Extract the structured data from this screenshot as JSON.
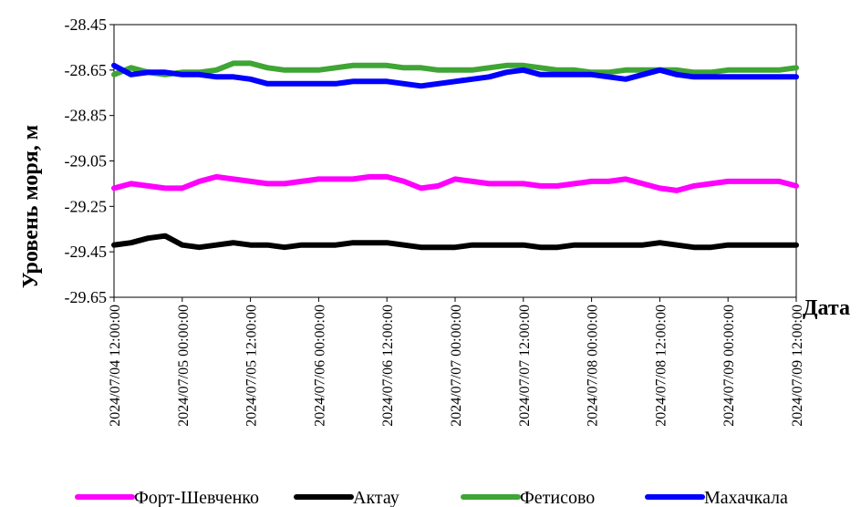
{
  "chart_data": {
    "type": "line",
    "title": "",
    "xlabel": "Дата",
    "ylabel": "Уровень моря, м",
    "ylim": [
      -29.65,
      -28.45
    ],
    "y_ticks": [
      "-28.45",
      "-28.65",
      "-28.85",
      "-29.05",
      "-29.25",
      "-29.45",
      "-29.65"
    ],
    "x_range": [
      "2024/07/04 12:00:00",
      "2024/07/09 12:00:00"
    ],
    "x_ticks": [
      "2024/07/04 12:00:00",
      "2024/07/05 00:00:00",
      "2024/07/05 12:00:00",
      "2024/07/06 00:00:00",
      "2024/07/06 12:00:00",
      "2024/07/07 00:00:00",
      "2024/07/07 12:00:00",
      "2024/07/08 00:00:00",
      "2024/07/08 12:00:00",
      "2024/07/09 00:00:00",
      "2024/07/09 12:00:00"
    ],
    "grid": false,
    "legend_position": "bottom",
    "series": [
      {
        "name": "Форт-Шевченко",
        "color": "#ff00ff",
        "x": [
          "2024/07/04 12:00:00",
          "2024/07/04 15:00:00",
          "2024/07/04 18:00:00",
          "2024/07/04 21:00:00",
          "2024/07/05 00:00:00",
          "2024/07/05 03:00:00",
          "2024/07/05 06:00:00",
          "2024/07/05 09:00:00",
          "2024/07/05 12:00:00",
          "2024/07/05 15:00:00",
          "2024/07/05 18:00:00",
          "2024/07/05 21:00:00",
          "2024/07/06 00:00:00",
          "2024/07/06 03:00:00",
          "2024/07/06 06:00:00",
          "2024/07/06 09:00:00",
          "2024/07/06 12:00:00",
          "2024/07/06 15:00:00",
          "2024/07/06 18:00:00",
          "2024/07/06 21:00:00",
          "2024/07/07 00:00:00",
          "2024/07/07 03:00:00",
          "2024/07/07 06:00:00",
          "2024/07/07 09:00:00",
          "2024/07/07 12:00:00",
          "2024/07/07 15:00:00",
          "2024/07/07 18:00:00",
          "2024/07/07 21:00:00",
          "2024/07/08 00:00:00",
          "2024/07/08 03:00:00",
          "2024/07/08 06:00:00",
          "2024/07/08 09:00:00",
          "2024/07/08 12:00:00",
          "2024/07/08 15:00:00",
          "2024/07/08 18:00:00",
          "2024/07/08 21:00:00",
          "2024/07/09 00:00:00",
          "2024/07/09 03:00:00",
          "2024/07/09 06:00:00",
          "2024/07/09 09:00:00",
          "2024/07/09 12:00:00"
        ],
        "values": [
          -29.17,
          -29.15,
          -29.16,
          -29.17,
          -29.17,
          -29.14,
          -29.12,
          -29.13,
          -29.14,
          -29.15,
          -29.15,
          -29.14,
          -29.13,
          -29.13,
          -29.13,
          -29.12,
          -29.12,
          -29.14,
          -29.17,
          -29.16,
          -29.13,
          -29.14,
          -29.15,
          -29.15,
          -29.15,
          -29.16,
          -29.16,
          -29.15,
          -29.14,
          -29.14,
          -29.13,
          -29.15,
          -29.17,
          -29.18,
          -29.16,
          -29.15,
          -29.14,
          -29.14,
          -29.14,
          -29.14,
          -29.16
        ]
      },
      {
        "name": "Актау",
        "color": "#000000",
        "x": [
          "2024/07/04 12:00:00",
          "2024/07/04 15:00:00",
          "2024/07/04 18:00:00",
          "2024/07/04 21:00:00",
          "2024/07/05 00:00:00",
          "2024/07/05 03:00:00",
          "2024/07/05 06:00:00",
          "2024/07/05 09:00:00",
          "2024/07/05 12:00:00",
          "2024/07/05 15:00:00",
          "2024/07/05 18:00:00",
          "2024/07/05 21:00:00",
          "2024/07/06 00:00:00",
          "2024/07/06 03:00:00",
          "2024/07/06 06:00:00",
          "2024/07/06 09:00:00",
          "2024/07/06 12:00:00",
          "2024/07/06 15:00:00",
          "2024/07/06 18:00:00",
          "2024/07/06 21:00:00",
          "2024/07/07 00:00:00",
          "2024/07/07 03:00:00",
          "2024/07/07 06:00:00",
          "2024/07/07 09:00:00",
          "2024/07/07 12:00:00",
          "2024/07/07 15:00:00",
          "2024/07/07 18:00:00",
          "2024/07/07 21:00:00",
          "2024/07/08 00:00:00",
          "2024/07/08 03:00:00",
          "2024/07/08 06:00:00",
          "2024/07/08 09:00:00",
          "2024/07/08 12:00:00",
          "2024/07/08 15:00:00",
          "2024/07/08 18:00:00",
          "2024/07/08 21:00:00",
          "2024/07/09 00:00:00",
          "2024/07/09 03:00:00",
          "2024/07/09 06:00:00",
          "2024/07/09 09:00:00",
          "2024/07/09 12:00:00"
        ],
        "values": [
          -29.42,
          -29.41,
          -29.39,
          -29.38,
          -29.42,
          -29.43,
          -29.42,
          -29.41,
          -29.42,
          -29.42,
          -29.43,
          -29.42,
          -29.42,
          -29.42,
          -29.41,
          -29.41,
          -29.41,
          -29.42,
          -29.43,
          -29.43,
          -29.43,
          -29.42,
          -29.42,
          -29.42,
          -29.42,
          -29.43,
          -29.43,
          -29.42,
          -29.42,
          -29.42,
          -29.42,
          -29.42,
          -29.41,
          -29.42,
          -29.43,
          -29.43,
          -29.42,
          -29.42,
          -29.42,
          -29.42,
          -29.42
        ]
      },
      {
        "name": "Фетисово",
        "color": "#3fa535",
        "x": [
          "2024/07/04 12:00:00",
          "2024/07/04 15:00:00",
          "2024/07/04 18:00:00",
          "2024/07/04 21:00:00",
          "2024/07/05 00:00:00",
          "2024/07/05 03:00:00",
          "2024/07/05 06:00:00",
          "2024/07/05 09:00:00",
          "2024/07/05 12:00:00",
          "2024/07/05 15:00:00",
          "2024/07/05 18:00:00",
          "2024/07/05 21:00:00",
          "2024/07/06 00:00:00",
          "2024/07/06 03:00:00",
          "2024/07/06 06:00:00",
          "2024/07/06 09:00:00",
          "2024/07/06 12:00:00",
          "2024/07/06 15:00:00",
          "2024/07/06 18:00:00",
          "2024/07/06 21:00:00",
          "2024/07/07 00:00:00",
          "2024/07/07 03:00:00",
          "2024/07/07 06:00:00",
          "2024/07/07 09:00:00",
          "2024/07/07 12:00:00",
          "2024/07/07 15:00:00",
          "2024/07/07 18:00:00",
          "2024/07/07 21:00:00",
          "2024/07/08 00:00:00",
          "2024/07/08 03:00:00",
          "2024/07/08 06:00:00",
          "2024/07/08 09:00:00",
          "2024/07/08 12:00:00",
          "2024/07/08 15:00:00",
          "2024/07/08 18:00:00",
          "2024/07/08 21:00:00",
          "2024/07/09 00:00:00",
          "2024/07/09 03:00:00",
          "2024/07/09 06:00:00",
          "2024/07/09 09:00:00",
          "2024/07/09 12:00:00"
        ],
        "values": [
          -28.67,
          -28.64,
          -28.66,
          -28.67,
          -28.66,
          -28.66,
          -28.65,
          -28.62,
          -28.62,
          -28.64,
          -28.65,
          -28.65,
          -28.65,
          -28.64,
          -28.63,
          -28.63,
          -28.63,
          -28.64,
          -28.64,
          -28.65,
          -28.65,
          -28.65,
          -28.64,
          -28.63,
          -28.63,
          -28.64,
          -28.65,
          -28.65,
          -28.66,
          -28.66,
          -28.65,
          -28.65,
          -28.65,
          -28.65,
          -28.66,
          -28.66,
          -28.65,
          -28.65,
          -28.65,
          -28.65,
          -28.64
        ]
      },
      {
        "name": "Махачкала",
        "color": "#0000ff",
        "x": [
          "2024/07/04 12:00:00",
          "2024/07/04 15:00:00",
          "2024/07/04 18:00:00",
          "2024/07/04 21:00:00",
          "2024/07/05 00:00:00",
          "2024/07/05 03:00:00",
          "2024/07/05 06:00:00",
          "2024/07/05 09:00:00",
          "2024/07/05 12:00:00",
          "2024/07/05 15:00:00",
          "2024/07/05 18:00:00",
          "2024/07/05 21:00:00",
          "2024/07/06 00:00:00",
          "2024/07/06 03:00:00",
          "2024/07/06 06:00:00",
          "2024/07/06 09:00:00",
          "2024/07/06 12:00:00",
          "2024/07/06 15:00:00",
          "2024/07/06 18:00:00",
          "2024/07/06 21:00:00",
          "2024/07/07 00:00:00",
          "2024/07/07 03:00:00",
          "2024/07/07 06:00:00",
          "2024/07/07 09:00:00",
          "2024/07/07 12:00:00",
          "2024/07/07 15:00:00",
          "2024/07/07 18:00:00",
          "2024/07/07 21:00:00",
          "2024/07/08 00:00:00",
          "2024/07/08 03:00:00",
          "2024/07/08 06:00:00",
          "2024/07/08 09:00:00",
          "2024/07/08 12:00:00",
          "2024/07/08 15:00:00",
          "2024/07/08 18:00:00",
          "2024/07/08 21:00:00",
          "2024/07/09 00:00:00",
          "2024/07/09 03:00:00",
          "2024/07/09 06:00:00",
          "2024/07/09 09:00:00",
          "2024/07/09 12:00:00"
        ],
        "values": [
          -28.63,
          -28.67,
          -28.66,
          -28.66,
          -28.67,
          -28.67,
          -28.68,
          -28.68,
          -28.69,
          -28.71,
          -28.71,
          -28.71,
          -28.71,
          -28.71,
          -28.7,
          -28.7,
          -28.7,
          -28.71,
          -28.72,
          -28.71,
          -28.7,
          -28.69,
          -28.68,
          -28.66,
          -28.65,
          -28.67,
          -28.67,
          -28.67,
          -28.67,
          -28.68,
          -28.69,
          -28.67,
          -28.65,
          -28.67,
          -28.68,
          -28.68,
          -28.68,
          -28.68,
          -28.68,
          -28.68,
          -28.68
        ]
      }
    ]
  }
}
